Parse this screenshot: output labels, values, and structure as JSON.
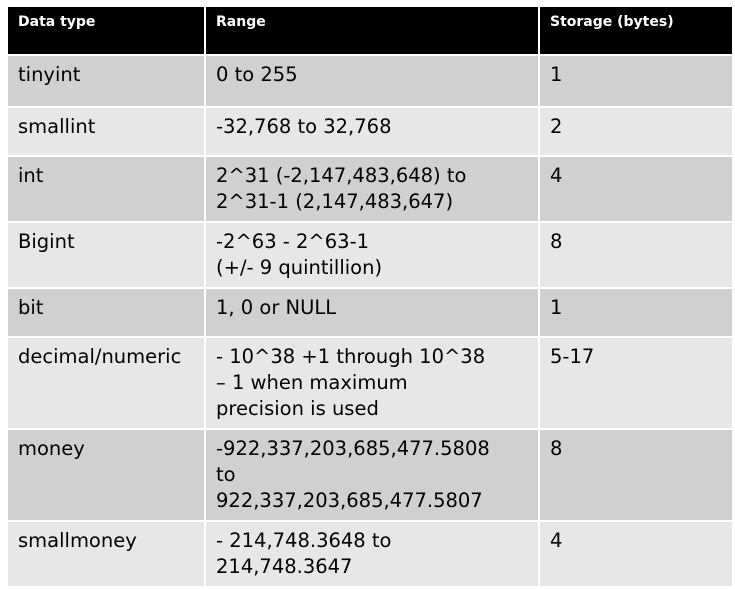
{
  "table": {
    "headers": [
      "Data type",
      "Range",
      "Storage (bytes)"
    ],
    "rows": [
      {
        "type": "tinyint",
        "range": [
          "0 to 255"
        ],
        "storage": "1"
      },
      {
        "type": "smallint",
        "range": [
          "-32,768 to 32,768"
        ],
        "storage": "2"
      },
      {
        "type": "int",
        "range": [
          "2^31 (-2,147,483,648) to",
          "2^31-1 (2,147,483,647)"
        ],
        "storage": "4"
      },
      {
        "type": "Bigint",
        "range": [
          "-2^63 - 2^63-1",
          "(+/- 9 quintillion)"
        ],
        "storage": "8"
      },
      {
        "type": "bit",
        "range": [
          "1, 0 or NULL"
        ],
        "storage": "1"
      },
      {
        "type": "decimal/numeric",
        "range": [
          "- 10^38 +1 through 10^38",
          "– 1 when maximum",
          "precision is used"
        ],
        "storage": "5-17"
      },
      {
        "type": "money",
        "range": [
          "-922,337,203,685,477.5808",
          "to",
          "922,337,203,685,477.5807"
        ],
        "storage": "8"
      },
      {
        "type": "smallmoney",
        "range": [
          "- 214,748.3648 to",
          "214,748.3647"
        ],
        "storage": "4"
      }
    ]
  }
}
